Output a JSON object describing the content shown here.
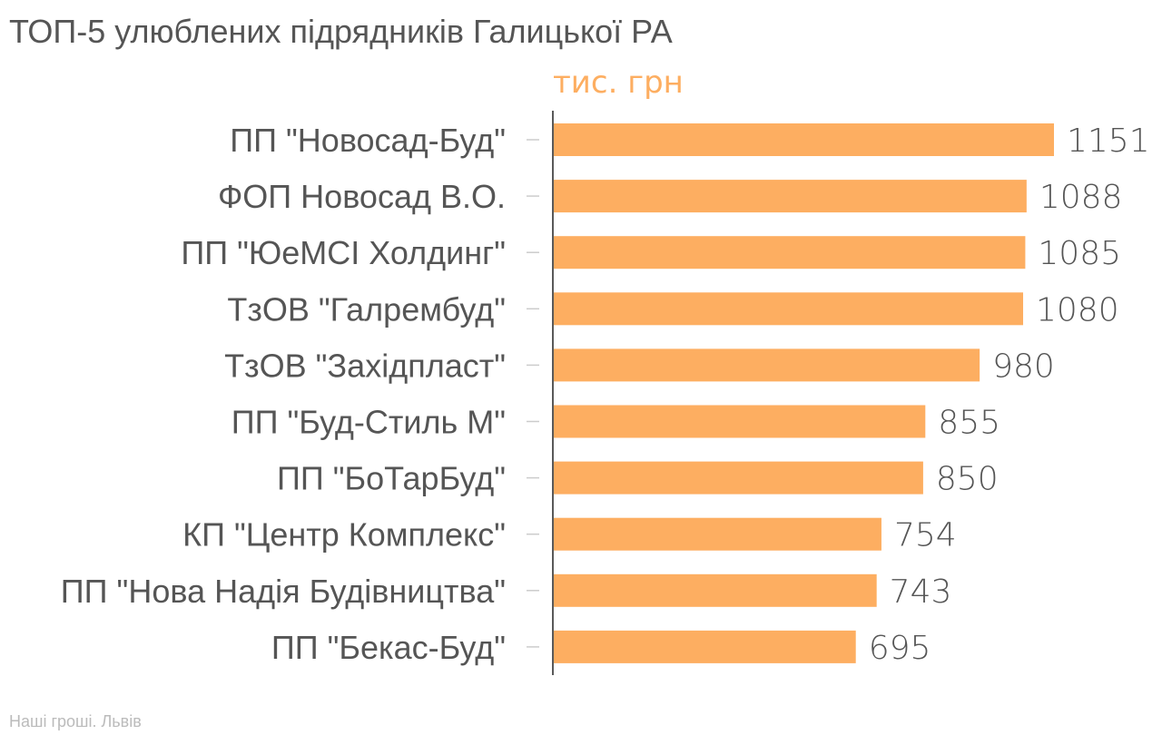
{
  "chart_data": {
    "type": "bar",
    "orientation": "horizontal",
    "title": "ТОП-5 улюблених підрядників Галицької РА",
    "unit": "тис. грн",
    "source": "Наші гроші. Львів",
    "categories": [
      "ПП \"Новосад-Буд\"",
      "ФОП Новосад В.О.",
      "ПП \"ЮеМСІ Холдинг\"",
      "ТзОВ \"Галрембуд\"",
      "ТзОВ \"Західпласт\"",
      "ПП \"Буд-Стиль М\"",
      "ПП \"БоТарБуд\"",
      "КП \"Центр Комплекс\"",
      "ПП \"Нова Надія Будівництва\"",
      "ПП \"Бекас-Буд\""
    ],
    "values": [
      1151,
      1088,
      1085,
      1080,
      980,
      855,
      850,
      754,
      743,
      695
    ],
    "data_labels": [
      "1151",
      "1088",
      "1085",
      "1080",
      "980",
      "855",
      "850",
      "754",
      "743",
      "695"
    ],
    "xlim": [
      0,
      1151
    ],
    "grid": false,
    "legend": "none"
  },
  "colors": {
    "bar": "#fdae61",
    "unit_text": "#fdae61",
    "text": "#555555",
    "axis": "#222222",
    "tick": "#cccccc",
    "source_text": "#bbbbbb"
  }
}
